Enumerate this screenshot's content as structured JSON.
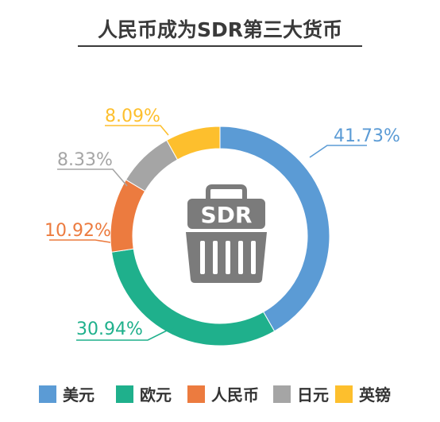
{
  "chart_data": {
    "type": "pie",
    "title": "人民币成为SDR第三大货币",
    "categories": [
      "美元",
      "欧元",
      "人民币",
      "日元",
      "英镑"
    ],
    "values": [
      41.73,
      30.94,
      10.92,
      8.33,
      8.09
    ],
    "labels": [
      "41.73%",
      "30.94%",
      "10.92%",
      "8.33%",
      "8.09%"
    ],
    "colors": [
      "#5b9bd5",
      "#1fb08c",
      "#ec7b3f",
      "#a5a5a5",
      "#fdbf2d"
    ],
    "legend_position": "bottom",
    "center_icon": "sdr-basket-icon",
    "center_text": "SDR"
  }
}
